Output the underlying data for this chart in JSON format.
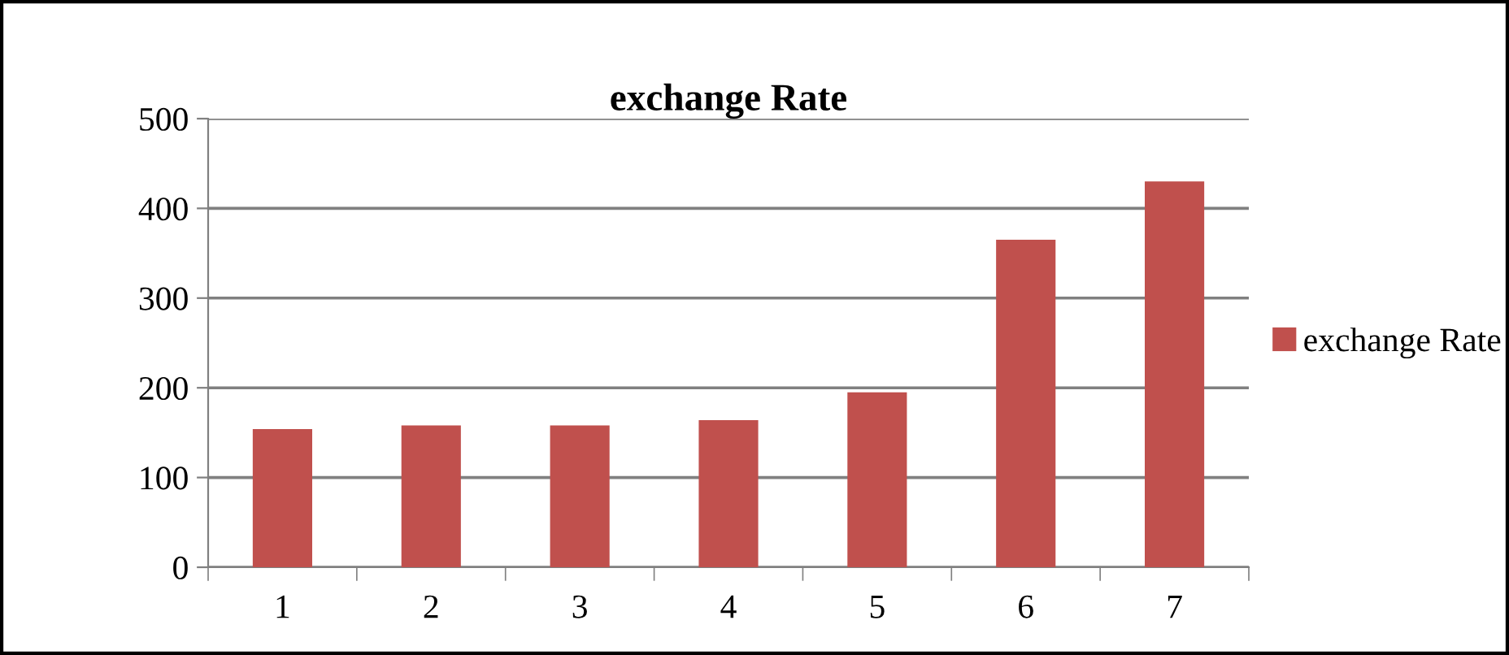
{
  "chart_data": {
    "type": "bar",
    "title": "exchange Rate",
    "categories": [
      "1",
      "2",
      "3",
      "4",
      "5",
      "6",
      "7"
    ],
    "series": [
      {
        "name": "exchange Rate",
        "color": "#c0504d",
        "values": [
          154,
          158,
          158,
          164,
          195,
          365,
          430
        ]
      }
    ],
    "ylim": [
      0,
      500
    ],
    "yticks": [
      0,
      100,
      200,
      300,
      400,
      500
    ],
    "grid": "y",
    "legend": "right"
  }
}
